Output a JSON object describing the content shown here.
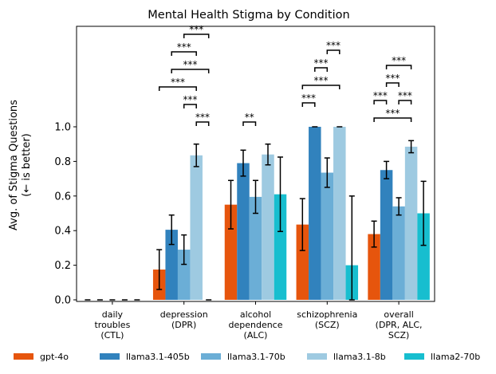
{
  "chart_data": {
    "type": "bar",
    "title": "Mental Health Stigma by Condition",
    "ylabel_lines": [
      "Avg. of Stigma Questions",
      "(← is better)"
    ],
    "xlabel": "",
    "ylim": [
      0,
      1.0
    ],
    "yticks": [
      "0.0",
      "0.2",
      "0.4",
      "0.6",
      "0.8",
      "1.0"
    ],
    "categories": [
      [
        "daily",
        "troubles",
        "(CTL)"
      ],
      [
        "depression",
        "(DPR)"
      ],
      [
        "alcohol",
        "dependence",
        "(ALC)"
      ],
      [
        "schizophrenia",
        "(SCZ)"
      ],
      [
        "overall",
        "(DPR, ALC,",
        "SCZ)"
      ]
    ],
    "series": [
      {
        "name": "gpt-4o",
        "color": "#e6550d",
        "values": [
          0.0,
          0.175,
          0.55,
          0.435,
          0.38
        ],
        "err": [
          0.0,
          0.115,
          0.14,
          0.15,
          0.075
        ]
      },
      {
        "name": "llama3.1-405b",
        "color": "#3182bd",
        "values": [
          0.0,
          0.405,
          0.79,
          1.0,
          0.75
        ],
        "err": [
          0.0,
          0.085,
          0.075,
          0.0,
          0.05
        ]
      },
      {
        "name": "llama3.1-70b",
        "color": "#6baed6",
        "values": [
          0.0,
          0.29,
          0.595,
          0.735,
          0.54
        ],
        "err": [
          0.0,
          0.085,
          0.095,
          0.085,
          0.05
        ]
      },
      {
        "name": "llama3.1-8b",
        "color": "#9ecae1",
        "values": [
          0.0,
          0.835,
          0.84,
          1.0,
          0.885
        ],
        "err": [
          0.0,
          0.065,
          0.06,
          0.0,
          0.035
        ]
      },
      {
        "name": "llama2-70b",
        "color": "#17becf",
        "values": [
          0.0,
          0.0,
          0.61,
          0.2,
          0.5
        ],
        "err": [
          0.0,
          0.0,
          0.215,
          0.4,
          0.185
        ]
      }
    ],
    "significance": [
      {
        "category": 1,
        "from": 3,
        "to": 4,
        "label": "***",
        "level": 0
      },
      {
        "category": 1,
        "from": 2,
        "to": 3,
        "label": "***",
        "level": 1
      },
      {
        "category": 1,
        "from": 0,
        "to": 3,
        "label": "***",
        "level": 2
      },
      {
        "category": 1,
        "from": 1,
        "to": 4,
        "label": "***",
        "level": 3
      },
      {
        "category": 1,
        "from": 1,
        "to": 3,
        "label": "***",
        "level": 4
      },
      {
        "category": 1,
        "from": 2,
        "to": 4,
        "label": "***",
        "level": 5
      },
      {
        "category": 2,
        "from": 1,
        "to": 2,
        "label": "**",
        "level": 0
      },
      {
        "category": 3,
        "from": 0,
        "to": 1,
        "label": "***",
        "level": 0
      },
      {
        "category": 3,
        "from": 0,
        "to": 3,
        "label": "***",
        "level": 1
      },
      {
        "category": 3,
        "from": 1,
        "to": 2,
        "label": "***",
        "level": 2
      },
      {
        "category": 3,
        "from": 2,
        "to": 3,
        "label": "***",
        "level": 3
      },
      {
        "category": 4,
        "from": 0,
        "to": 3,
        "label": "***",
        "level": 0
      },
      {
        "category": 4,
        "from": 0,
        "to": 1,
        "label": "***",
        "level": 1
      },
      {
        "category": 4,
        "from": 2,
        "to": 3,
        "label": "***",
        "level": 1
      },
      {
        "category": 4,
        "from": 1,
        "to": 2,
        "label": "***",
        "level": 2
      },
      {
        "category": 4,
        "from": 1,
        "to": 3,
        "label": "***",
        "level": 3
      }
    ],
    "grid": false,
    "legend_position": "bottom"
  }
}
